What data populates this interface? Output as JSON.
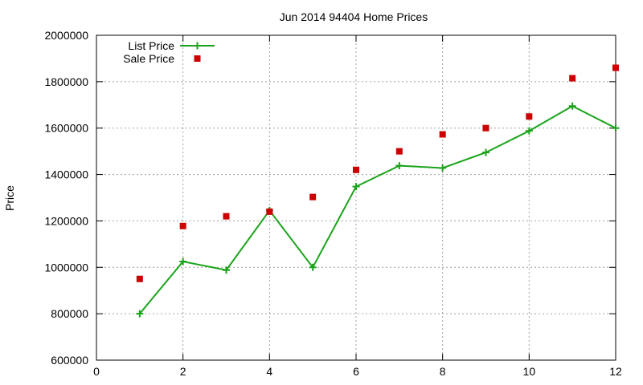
{
  "chart_data": {
    "type": "line",
    "title": "Jun 2014 94404 Home Prices",
    "xlabel": "",
    "ylabel": "Price",
    "xlim": [
      0,
      12
    ],
    "ylim": [
      600000,
      2000000
    ],
    "x_ticks": [
      0,
      2,
      4,
      6,
      8,
      10,
      12
    ],
    "y_ticks": [
      600000,
      800000,
      1000000,
      1200000,
      1400000,
      1600000,
      1800000,
      2000000
    ],
    "grid": true,
    "legend_position": "top-left",
    "series": [
      {
        "name": "List Price",
        "style": "linespoints",
        "marker": "plus",
        "color": "#1aa31a",
        "x": [
          1,
          2,
          3,
          4,
          5,
          6,
          7,
          8,
          9,
          10,
          11,
          12
        ],
        "values": [
          800000,
          1025000,
          988000,
          1245000,
          1000000,
          1348000,
          1438000,
          1428000,
          1495000,
          1588000,
          1695000,
          1600000
        ]
      },
      {
        "name": "Sale Price",
        "style": "points",
        "marker": "square",
        "color": "#cc0000",
        "x": [
          1,
          2,
          3,
          4,
          5,
          6,
          7,
          8,
          9,
          10,
          11,
          12
        ],
        "values": [
          950000,
          1178000,
          1220000,
          1240000,
          1303000,
          1420000,
          1500000,
          1573000,
          1600000,
          1650000,
          1815000,
          1860000
        ]
      }
    ]
  }
}
